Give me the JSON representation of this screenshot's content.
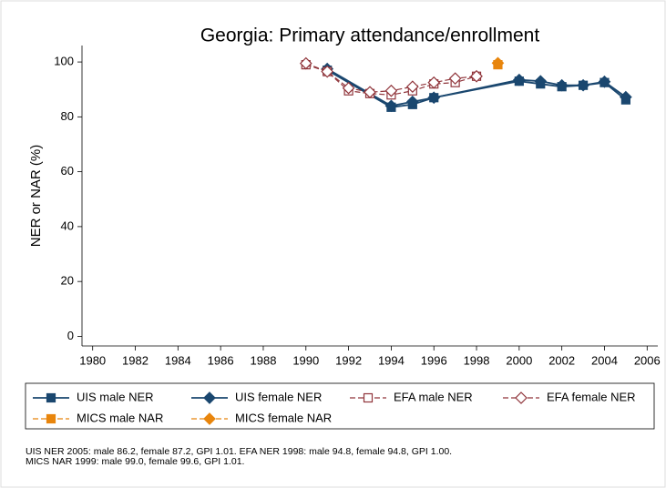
{
  "chart_data": {
    "type": "line",
    "title": "Georgia: Primary attendance/enrollment",
    "ylabel": "NER or NAR (%)",
    "xlim": [
      1979.5,
      2006.5
    ],
    "xticks": [
      1980,
      1982,
      1984,
      1986,
      1988,
      1990,
      1992,
      1994,
      1996,
      1998,
      2000,
      2002,
      2004,
      2006
    ],
    "ylim": [
      -3.5,
      106
    ],
    "yticks": [
      0,
      20,
      40,
      60,
      80,
      100
    ],
    "series": [
      {
        "name": "UIS male NER",
        "color": "#1a476f",
        "marker": "square",
        "filled": true,
        "dashed": false,
        "x": [
          1991,
          1994,
          1995,
          1996,
          2000,
          2001,
          2002,
          2003,
          2004,
          2005
        ],
        "values": [
          97,
          83.5,
          84.5,
          87,
          93,
          92,
          91,
          91.5,
          92.5,
          86.2
        ]
      },
      {
        "name": "UIS female NER",
        "color": "#1a476f",
        "marker": "diamond",
        "filled": true,
        "dashed": false,
        "x": [
          1991,
          1994,
          1995,
          1996,
          2000,
          2001,
          2002,
          2003,
          2004,
          2005
        ],
        "values": [
          97.5,
          84,
          85.5,
          87,
          93.5,
          93,
          91.5,
          91.5,
          92.8,
          87.2
        ]
      },
      {
        "name": "EFA male NER",
        "color": "#90353b",
        "marker": "square",
        "filled": false,
        "dashed": true,
        "x": [
          1990,
          1991,
          1992,
          1993,
          1994,
          1995,
          1996,
          1997,
          1998
        ],
        "values": [
          99,
          96.5,
          89.5,
          88.5,
          88,
          89.5,
          92,
          92.5,
          94.8
        ]
      },
      {
        "name": "EFA female NER",
        "color": "#90353b",
        "marker": "diamond",
        "filled": false,
        "dashed": true,
        "x": [
          1990,
          1991,
          1992,
          1993,
          1994,
          1995,
          1996,
          1997,
          1998
        ],
        "values": [
          99.5,
          96.5,
          90.5,
          89,
          89.5,
          91,
          92.5,
          94,
          94.8
        ]
      },
      {
        "name": "MICS male NAR",
        "color": "#e8850c",
        "marker": "square",
        "filled": true,
        "dashed": true,
        "x": [
          1999
        ],
        "values": [
          99.0
        ]
      },
      {
        "name": "MICS female NAR",
        "color": "#e8850c",
        "marker": "diamond",
        "filled": true,
        "dashed": true,
        "x": [
          1999
        ],
        "values": [
          99.6
        ]
      }
    ],
    "notes": [
      "UIS NER 2005: male 86.2, female 87.2, GPI 1.01. EFA NER 1998: male 94.8, female 94.8, GPI 1.00.",
      "MICS NAR 1999: male 99.0, female 99.6, GPI 1.01."
    ]
  }
}
